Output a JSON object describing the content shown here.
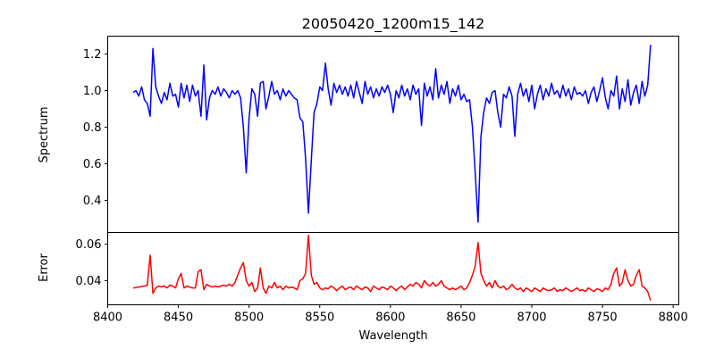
{
  "chart_data": [
    {
      "type": "line",
      "title": "20050420_1200m15_142",
      "xlabel": "",
      "ylabel": "Spectrum",
      "xlim": [
        8400,
        8804
      ],
      "ylim": [
        0.224,
        1.298
      ],
      "yticks": [
        0.4,
        0.6,
        0.8,
        1.0,
        1.2
      ],
      "ytick_labels": [
        "0.4",
        "0.6",
        "0.8",
        "1.0",
        "1.2"
      ],
      "grid": false,
      "series": [
        {
          "name": "spectrum",
          "color": "#0000ff",
          "x_start": 8418,
          "x_step": 2,
          "values": [
            0.99,
            1.0,
            0.97,
            1.02,
            0.95,
            0.93,
            0.86,
            1.23,
            1.02,
            0.97,
            0.93,
            0.99,
            0.95,
            1.04,
            0.97,
            0.98,
            0.91,
            1.04,
            0.96,
            1.03,
            0.94,
            1.03,
            0.97,
            1.0,
            0.86,
            1.14,
            0.84,
            0.96,
            1.0,
            0.98,
            1.02,
            0.97,
            1.01,
            0.99,
            0.96,
            1.0,
            0.98,
            1.0,
            0.96,
            0.8,
            0.55,
            0.85,
            1.01,
            0.98,
            0.86,
            1.04,
            1.05,
            0.9,
            0.97,
            1.05,
            0.98,
            1.0,
            0.95,
            1.01,
            0.97,
            1.0,
            0.98,
            0.96,
            0.95,
            0.85,
            0.83,
            0.63,
            0.33,
            0.62,
            0.88,
            0.93,
            1.02,
            1.0,
            1.15,
            1.01,
            0.92,
            1.04,
            0.99,
            1.03,
            0.98,
            1.02,
            0.97,
            1.03,
            0.96,
            1.05,
            0.99,
            0.93,
            1.05,
            0.98,
            1.02,
            0.96,
            1.01,
            0.97,
            1.02,
            0.99,
            1.03,
            0.98,
            0.88,
            1.0,
            0.96,
            1.03,
            0.97,
            1.01,
            0.95,
            1.03,
            0.98,
            1.01,
            0.81,
            1.04,
            0.97,
            1.02,
            0.95,
            1.12,
            0.96,
            1.03,
            0.98,
            1.05,
            0.93,
            1.01,
            0.97,
            1.03,
            0.95,
            0.98,
            0.94,
            0.95,
            0.8,
            0.55,
            0.28,
            0.75,
            0.88,
            0.96,
            0.93,
            0.99,
            1.0,
            0.88,
            0.8,
            0.98,
            0.96,
            1.02,
            0.97,
            0.75,
            0.98,
            1.04,
            0.97,
            1.01,
            0.94,
            1.03,
            0.9,
            0.98,
            1.03,
            0.95,
            1.01,
            0.97,
            1.04,
            0.98,
            1.0,
            0.96,
            1.03,
            0.97,
            1.01,
            0.95,
            1.02,
            0.98,
            0.99,
            0.97,
            1.0,
            0.93,
            0.99,
            1.02,
            0.94,
            1.0,
            1.07,
            0.96,
            0.9,
            1.0,
            0.97,
            1.08,
            0.9,
            1.01,
            0.94,
            1.06,
            0.92,
            0.99,
            1.03,
            0.93,
            1.05,
            0.97,
            1.03,
            1.25
          ]
        }
      ]
    },
    {
      "type": "line",
      "title": "",
      "xlabel": "Wavelength",
      "ylabel": "Error",
      "xlim": [
        8400,
        8804
      ],
      "ylim": [
        0.0267,
        0.0665
      ],
      "xticks": [
        8400,
        8450,
        8500,
        8550,
        8600,
        8650,
        8700,
        8750,
        8800
      ],
      "xtick_labels": [
        "8400",
        "8450",
        "8500",
        "8550",
        "8600",
        "8650",
        "8700",
        "8750",
        "8800"
      ],
      "yticks": [
        0.04,
        0.06
      ],
      "ytick_labels": [
        "0.04",
        "0.06"
      ],
      "grid": false,
      "series": [
        {
          "name": "error",
          "color": "#ff0000",
          "x_start": 8418,
          "x_step": 2,
          "values": [
            0.036,
            0.0362,
            0.0365,
            0.0368,
            0.037,
            0.0375,
            0.054,
            0.033,
            0.036,
            0.037,
            0.0365,
            0.037,
            0.036,
            0.0375,
            0.037,
            0.036,
            0.041,
            0.044,
            0.036,
            0.037,
            0.0365,
            0.036,
            0.036,
            0.045,
            0.046,
            0.035,
            0.038,
            0.037,
            0.0365,
            0.037,
            0.0365,
            0.037,
            0.0375,
            0.037,
            0.038,
            0.037,
            0.039,
            0.043,
            0.047,
            0.05,
            0.04,
            0.037,
            0.039,
            0.034,
            0.036,
            0.047,
            0.036,
            0.033,
            0.037,
            0.036,
            0.039,
            0.036,
            0.037,
            0.035,
            0.037,
            0.036,
            0.0365,
            0.036,
            0.035,
            0.04,
            0.041,
            0.044,
            0.065,
            0.043,
            0.038,
            0.039,
            0.036,
            0.035,
            0.036,
            0.0355,
            0.037,
            0.036,
            0.0345,
            0.036,
            0.037,
            0.035,
            0.036,
            0.0365,
            0.035,
            0.037,
            0.036,
            0.035,
            0.0365,
            0.036,
            0.034,
            0.037,
            0.036,
            0.035,
            0.0365,
            0.036,
            0.035,
            0.037,
            0.036,
            0.0345,
            0.036,
            0.037,
            0.035,
            0.0365,
            0.038,
            0.037,
            0.039,
            0.038,
            0.036,
            0.04,
            0.038,
            0.037,
            0.039,
            0.037,
            0.038,
            0.04,
            0.037,
            0.036,
            0.035,
            0.036,
            0.035,
            0.036,
            0.037,
            0.035,
            0.036,
            0.039,
            0.043,
            0.048,
            0.061,
            0.044,
            0.04,
            0.037,
            0.039,
            0.036,
            0.04,
            0.037,
            0.036,
            0.037,
            0.035,
            0.036,
            0.038,
            0.036,
            0.035,
            0.036,
            0.034,
            0.036,
            0.035,
            0.034,
            0.036,
            0.035,
            0.034,
            0.036,
            0.035,
            0.0345,
            0.035,
            0.036,
            0.034,
            0.035,
            0.0345,
            0.036,
            0.035,
            0.034,
            0.035,
            0.036,
            0.0345,
            0.035,
            0.034,
            0.036,
            0.035,
            0.034,
            0.0355,
            0.035,
            0.034,
            0.036,
            0.035,
            0.038,
            0.044,
            0.047,
            0.037,
            0.039,
            0.046,
            0.04,
            0.037,
            0.038,
            0.043,
            0.046,
            0.037,
            0.036,
            0.034,
            0.029
          ]
        }
      ]
    }
  ]
}
